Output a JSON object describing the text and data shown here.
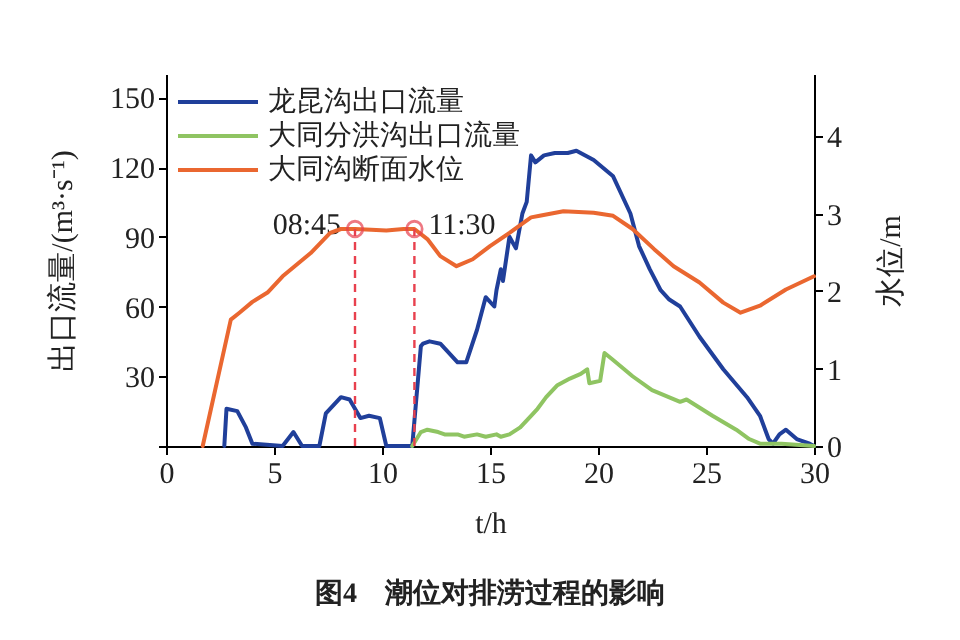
{
  "chart_data": {
    "type": "line",
    "title": "图4　潮位对排涝过程的影响",
    "xlabel": "t/h",
    "ylabel": "出口流量/(m³·s⁻¹)",
    "y2label": "水位/m",
    "xlim": [
      0,
      30
    ],
    "xticks": [
      0,
      5,
      10,
      15,
      20,
      25,
      30
    ],
    "ylim": [
      0,
      160
    ],
    "yticks": [
      {
        "value": 0,
        "label": null
      },
      30,
      60,
      90,
      120,
      150
    ],
    "y2lim": [
      0,
      4.8
    ],
    "y2ticks": [
      0,
      1,
      2,
      3,
      4
    ],
    "legend": "top left",
    "series": [
      {
        "name": "龙昆沟出口流量",
        "color": "#203f9a",
        "x": [
          2.7,
          2.8,
          3.3,
          3.7,
          4.0,
          5.4,
          5.9,
          6.3,
          7.1,
          7.4,
          8.1,
          8.5,
          9.0,
          9.4,
          9.9,
          10.2,
          11.4,
          11.8,
          11.9,
          12.2,
          12.7,
          13.0,
          13.5,
          13.9,
          14.4,
          14.8,
          15.2,
          15.3,
          15.5,
          15.6,
          15.9,
          16.2,
          16.5,
          16.7,
          16.9,
          17.1,
          17.5,
          18.0,
          18.6,
          19.0,
          19.8,
          20.7,
          21.5,
          21.9,
          22.4,
          22.9,
          23.3,
          23.8,
          24.7,
          25.8,
          26.9,
          27.5,
          27.9,
          28.1,
          28.4,
          28.7,
          29.2,
          29.8,
          30.0
        ],
        "values": [
          0,
          16,
          15,
          8,
          1,
          0,
          6,
          0,
          0,
          14,
          21,
          20,
          12,
          13,
          12,
          0,
          0,
          43,
          44,
          45,
          44,
          41,
          36,
          36,
          50,
          64,
          60,
          67,
          76,
          71,
          90,
          85,
          100,
          105,
          125,
          122,
          125,
          126,
          126,
          127,
          123,
          116,
          100,
          86,
          76,
          67,
          63,
          60,
          47,
          33,
          21,
          13,
          3,
          1,
          5,
          7,
          3,
          1,
          0
        ]
      },
      {
        "name": "大同分洪沟出口流量",
        "color": "#8fc462",
        "x": [
          11.4,
          11.8,
          12.1,
          12.6,
          12.9,
          13.5,
          13.8,
          14.4,
          14.8,
          15.3,
          15.5,
          15.9,
          16.4,
          16.9,
          17.2,
          17.6,
          18.1,
          18.7,
          19.2,
          19.5,
          19.6,
          20.1,
          20.3,
          20.7,
          21.6,
          22.5,
          23.8,
          24.1,
          25.3,
          26.4,
          27.0,
          27.5,
          28.5,
          30.0
        ],
        "values": [
          0,
          6,
          7,
          6,
          5,
          5,
          4,
          5,
          4,
          5,
          4,
          5,
          8,
          13,
          16,
          21,
          26,
          29,
          31,
          33,
          27,
          28,
          40,
          37,
          30,
          24,
          19,
          20,
          13,
          7,
          3,
          1,
          1,
          0
        ]
      },
      {
        "name": "大同沟断面水位",
        "color": "#ea6730",
        "axis": "y2",
        "x": [
          1.7,
          3.0,
          3.4,
          4.0,
          4.7,
          5.4,
          6.7,
          7.6,
          8.1,
          8.75,
          9.5,
          10.2,
          11.0,
          11.5,
          12.1,
          12.7,
          13.45,
          14.2,
          15.0,
          15.9,
          16.4,
          16.9,
          17.3,
          18.4,
          19.8,
          20.7,
          21.6,
          22.6,
          23.5,
          24.7,
          25.8,
          26.6,
          27.5,
          28.7,
          30.0
        ],
        "values": [
          0,
          1.63,
          1.72,
          1.86,
          1.98,
          2.19,
          2.49,
          2.75,
          2.8,
          2.8,
          2.79,
          2.78,
          2.8,
          2.8,
          2.67,
          2.45,
          2.32,
          2.41,
          2.58,
          2.75,
          2.85,
          2.95,
          2.97,
          3.03,
          3.01,
          2.97,
          2.8,
          2.54,
          2.32,
          2.11,
          1.85,
          1.72,
          1.81,
          2.02,
          2.19
        ]
      }
    ],
    "ref_lines": [
      {
        "axis": "x",
        "value": 8.75,
        "color": "#e8404e",
        "line_style": "dashed"
      },
      {
        "axis": "x",
        "value": 11.5,
        "color": "#e8404e",
        "line_style": "dashed"
      }
    ],
    "annotations": [
      {
        "text": "08:45",
        "x": 8.75,
        "y": 93
      },
      {
        "text": "11:30",
        "x": 11.5,
        "y": 93
      }
    ]
  }
}
